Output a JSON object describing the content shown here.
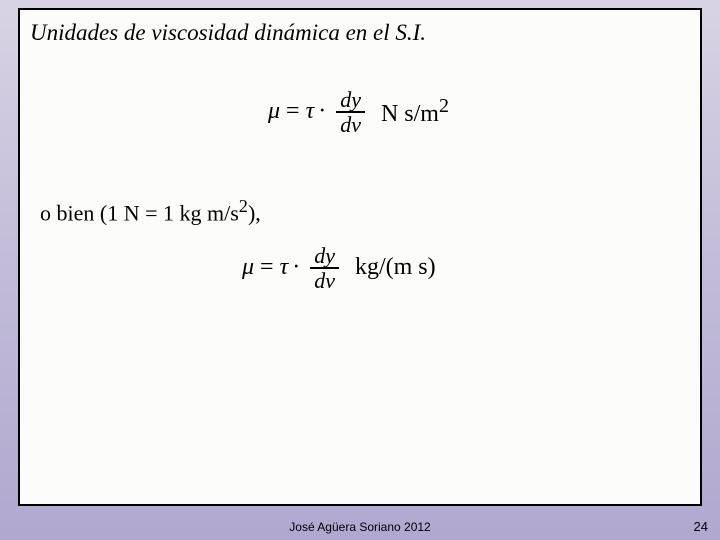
{
  "title": "Unidades de viscosidad dinámica en el S.I.",
  "eq": {
    "mu": "μ",
    "eq": "=",
    "tau": "τ",
    "dot": "·",
    "frac_num": "dy",
    "frac_den": "dv",
    "unit1_pre": "N s/m",
    "unit1_sup": "2",
    "unit2": "kg/(m s)"
  },
  "obien": {
    "pre": "o bien (1 N = 1 kg m/s",
    "sup": "2",
    "post": "),"
  },
  "footer": {
    "author": "José Agüera Soriano 2012",
    "page": "24"
  },
  "colors": {
    "box_bg": "#fcfdfb",
    "border": "#000000"
  }
}
